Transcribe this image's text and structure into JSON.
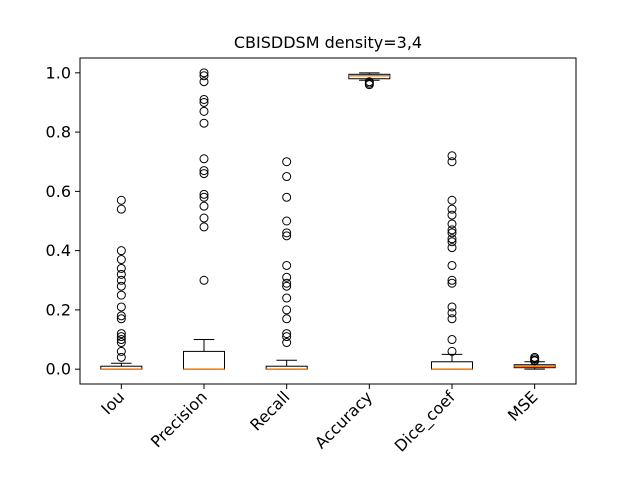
{
  "chart_data": {
    "type": "boxplot",
    "title": "CBISDDSM density=3,4",
    "xlabel": "",
    "ylabel": "",
    "ylim": [
      -0.05,
      1.05
    ],
    "yticks": [
      0.0,
      0.2,
      0.4,
      0.6,
      0.8,
      1.0
    ],
    "ytick_labels": [
      "0.0",
      "0.2",
      "0.4",
      "0.6",
      "0.8",
      "1.0"
    ],
    "grid": false,
    "colors": {
      "box": "#000000",
      "median": "#ff7f0e",
      "flier": "#000000"
    },
    "categories": [
      "Iou",
      "Precision",
      "Recall",
      "Accuracy",
      "Dice_coef",
      "MSE"
    ],
    "boxes": [
      {
        "label": "Iou",
        "q1": 0.0,
        "median": 0.0,
        "q3": 0.01,
        "whislo": 0.0,
        "whishi": 0.02,
        "fliers": [
          0.57,
          0.54,
          0.4,
          0.37,
          0.34,
          0.32,
          0.3,
          0.28,
          0.25,
          0.21,
          0.18,
          0.17,
          0.12,
          0.11,
          0.1,
          0.09,
          0.06,
          0.04
        ]
      },
      {
        "label": "Precision",
        "q1": 0.0,
        "median": 0.0,
        "q3": 0.06,
        "whislo": 0.0,
        "whishi": 0.1,
        "fliers": [
          1.0,
          0.99,
          0.97,
          0.91,
          0.9,
          0.87,
          0.83,
          0.71,
          0.67,
          0.66,
          0.59,
          0.58,
          0.55,
          0.51,
          0.48,
          0.3
        ]
      },
      {
        "label": "Recall",
        "q1": 0.0,
        "median": 0.0,
        "q3": 0.01,
        "whislo": 0.0,
        "whishi": 0.03,
        "fliers": [
          0.7,
          0.65,
          0.58,
          0.5,
          0.46,
          0.45,
          0.35,
          0.31,
          0.29,
          0.28,
          0.24,
          0.2,
          0.17,
          0.12,
          0.11,
          0.09
        ]
      },
      {
        "label": "Accuracy",
        "q1": 0.98,
        "median": 0.99,
        "q3": 0.995,
        "whislo": 0.975,
        "whishi": 1.0,
        "fliers": [
          0.97,
          0.965,
          0.96
        ]
      },
      {
        "label": "Dice_coef",
        "q1": 0.0,
        "median": 0.0,
        "q3": 0.025,
        "whislo": 0.0,
        "whishi": 0.05,
        "fliers": [
          0.72,
          0.7,
          0.57,
          0.54,
          0.52,
          0.49,
          0.47,
          0.46,
          0.44,
          0.43,
          0.41,
          0.35,
          0.3,
          0.29,
          0.21,
          0.19,
          0.17,
          0.1,
          0.06
        ]
      },
      {
        "label": "MSE",
        "q1": 0.005,
        "median": 0.01,
        "q3": 0.015,
        "whislo": 0.0,
        "whishi": 0.025,
        "fliers": [
          0.04,
          0.035,
          0.03,
          0.028
        ]
      }
    ]
  }
}
